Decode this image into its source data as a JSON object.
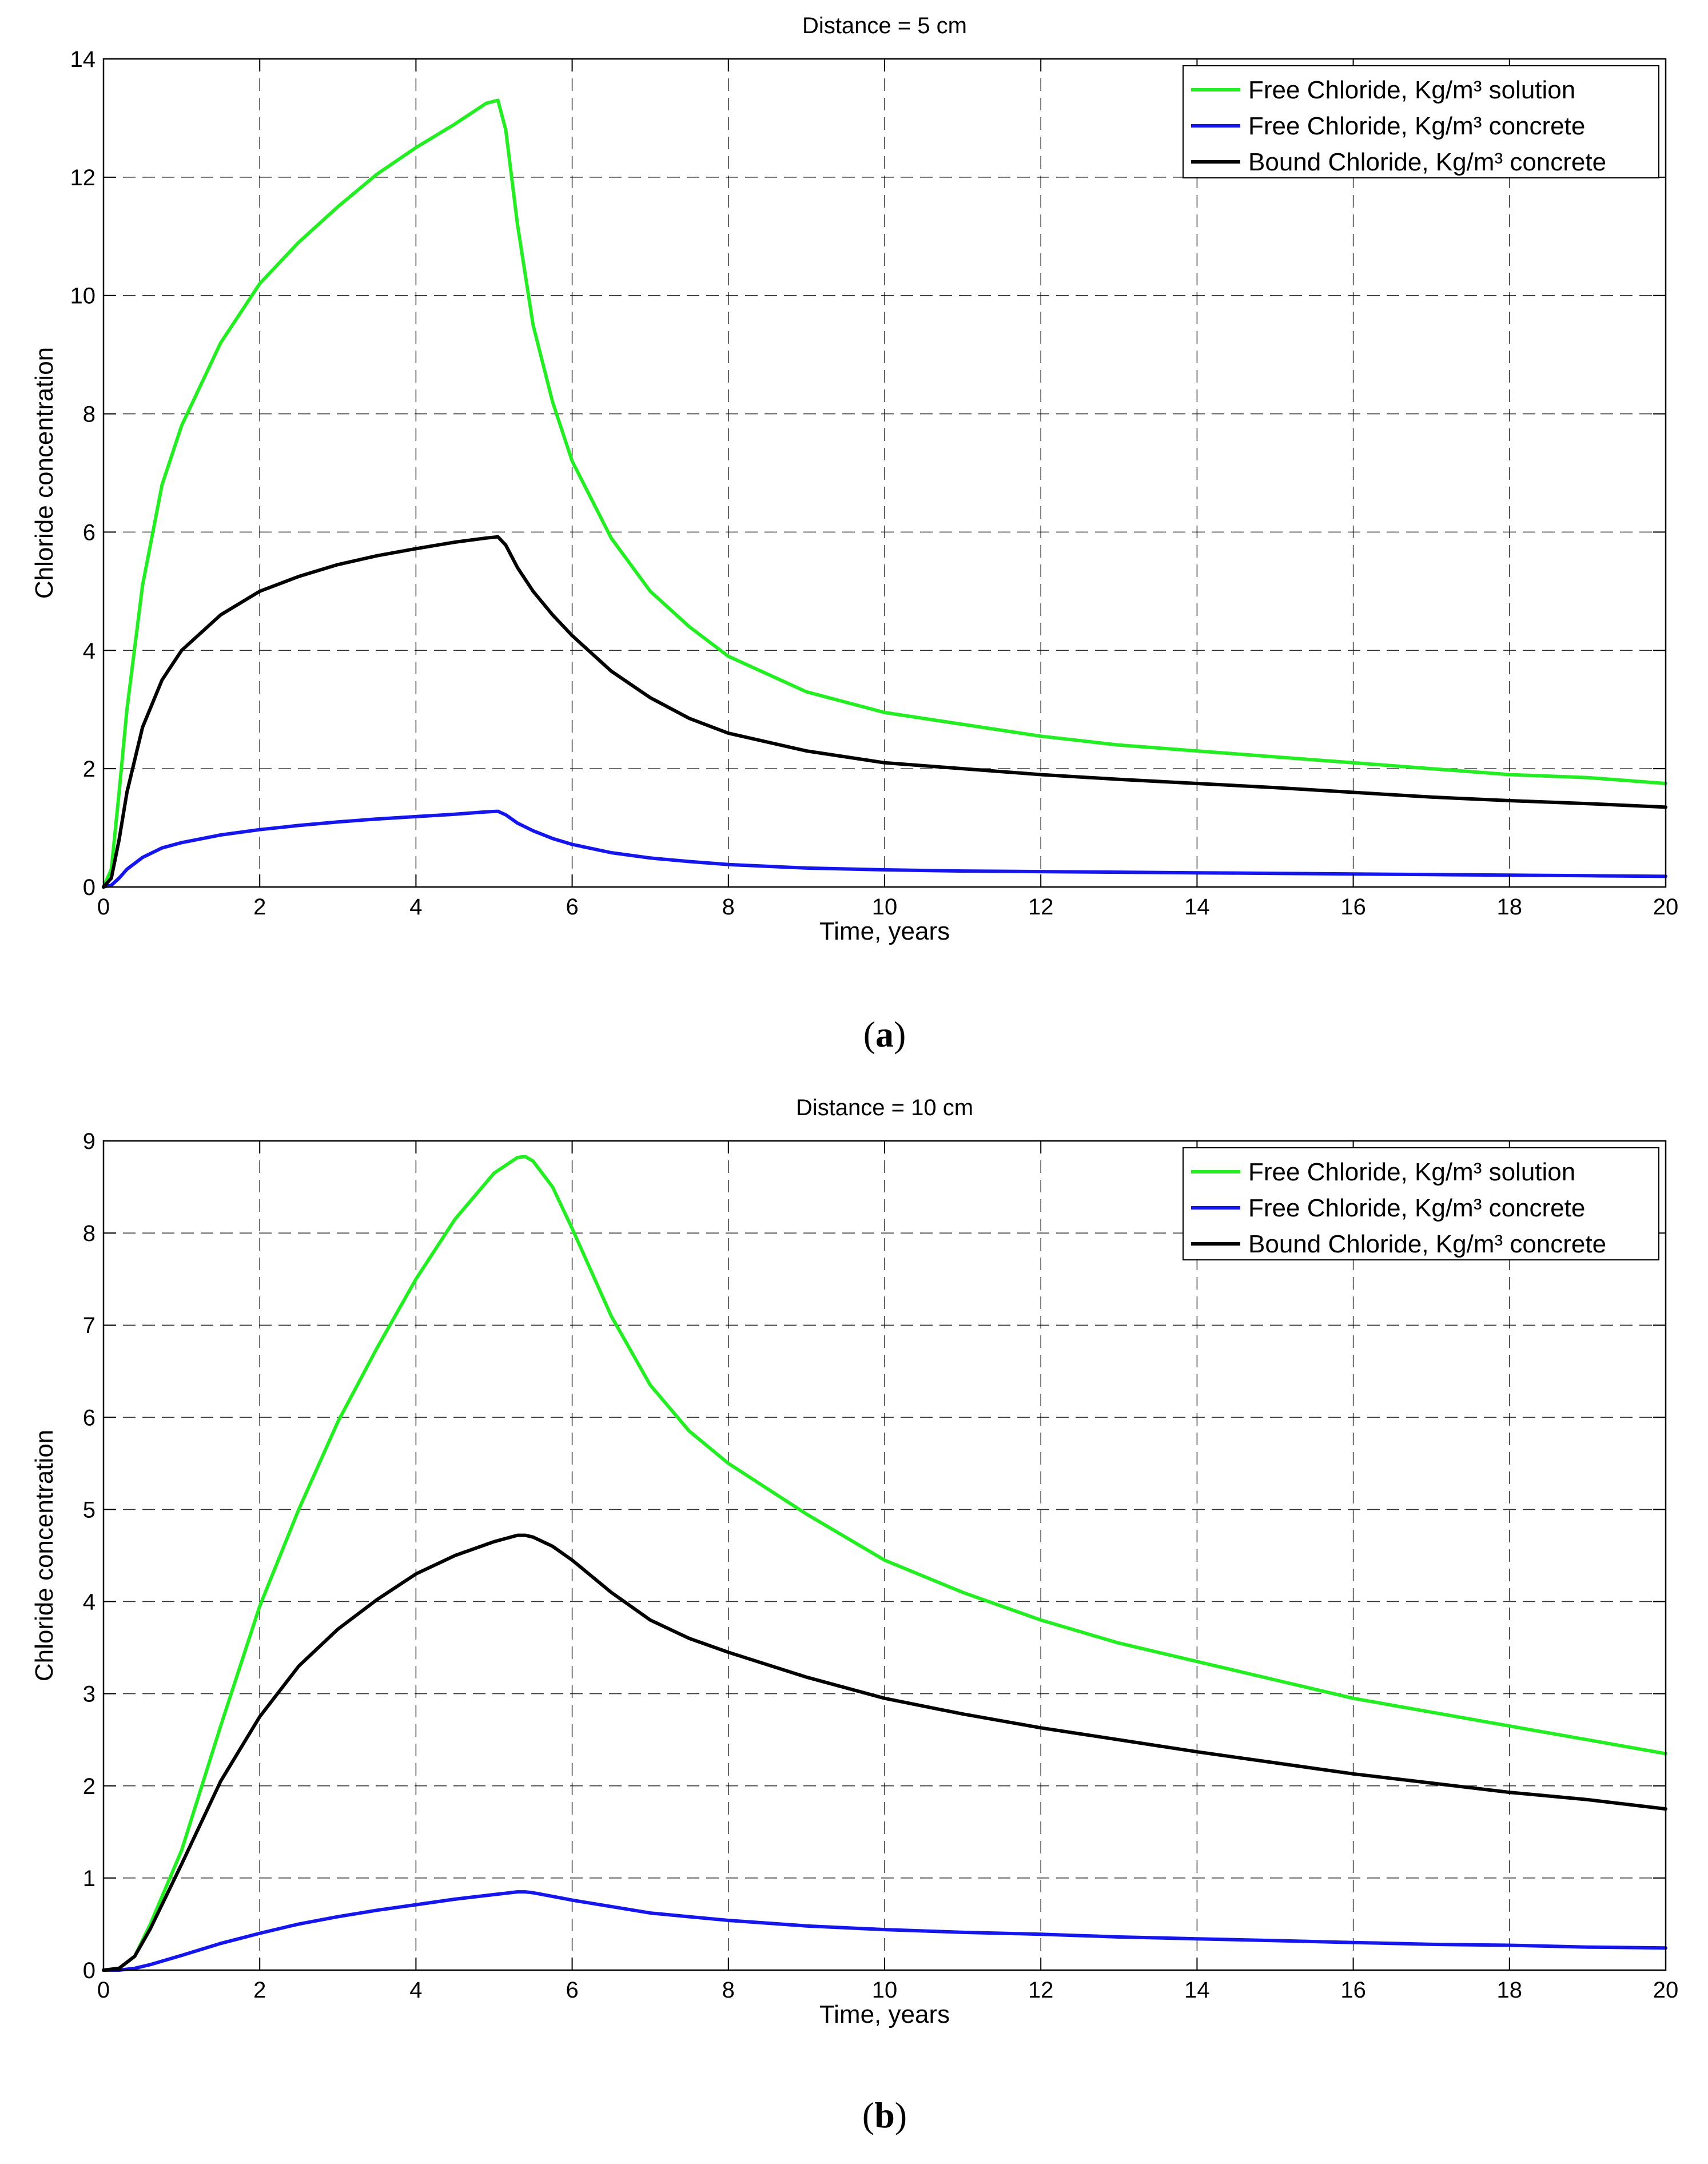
{
  "chart_data": [
    {
      "type": "line",
      "panel_label": "a",
      "title": "Distance = 5 cm",
      "xlabel": "Time, years",
      "ylabel": "Chloride concentration",
      "xlim": [
        0,
        20
      ],
      "ylim": [
        0,
        14
      ],
      "xticks": [
        0,
        2,
        4,
        6,
        8,
        10,
        12,
        14,
        16,
        18,
        20
      ],
      "yticks": [
        0,
        2,
        4,
        6,
        8,
        10,
        12,
        14
      ],
      "grid": true,
      "legend_position": "top-right",
      "series": [
        {
          "name": "Free Chloride, Kg/m³ solution",
          "color": "#22ee22",
          "x": [
            0,
            0.1,
            0.2,
            0.3,
            0.5,
            0.75,
            1,
            1.5,
            2,
            2.5,
            3,
            3.5,
            4,
            4.5,
            4.9,
            5.05,
            5.15,
            5.3,
            5.5,
            5.75,
            6,
            6.5,
            7,
            7.5,
            8,
            9,
            10,
            11,
            12,
            13,
            14,
            15,
            16,
            17,
            18,
            19,
            20
          ],
          "y": [
            0,
            0.3,
            1.6,
            3.0,
            5.1,
            6.8,
            7.8,
            9.2,
            10.2,
            10.9,
            11.5,
            12.05,
            12.5,
            12.9,
            13.25,
            13.3,
            12.8,
            11.2,
            9.5,
            8.2,
            7.2,
            5.9,
            5.0,
            4.4,
            3.9,
            3.3,
            2.95,
            2.75,
            2.55,
            2.4,
            2.3,
            2.2,
            2.1,
            2.0,
            1.9,
            1.85,
            1.75
          ]
        },
        {
          "name": "Free Chloride, Kg/m³ concrete",
          "color": "#1515ee",
          "x": [
            0,
            0.1,
            0.2,
            0.3,
            0.5,
            0.75,
            1,
            1.5,
            2,
            2.5,
            3,
            3.5,
            4,
            4.5,
            4.9,
            5.05,
            5.15,
            5.3,
            5.5,
            5.75,
            6,
            6.5,
            7,
            7.5,
            8,
            9,
            10,
            11,
            12,
            13,
            14,
            15,
            16,
            17,
            18,
            19,
            20
          ],
          "y": [
            0,
            0.03,
            0.15,
            0.3,
            0.5,
            0.66,
            0.75,
            0.88,
            0.97,
            1.04,
            1.1,
            1.15,
            1.19,
            1.23,
            1.27,
            1.28,
            1.22,
            1.08,
            0.95,
            0.82,
            0.72,
            0.58,
            0.49,
            0.43,
            0.38,
            0.32,
            0.29,
            0.27,
            0.26,
            0.25,
            0.24,
            0.23,
            0.22,
            0.21,
            0.2,
            0.19,
            0.18
          ]
        },
        {
          "name": "Bound Chloride, Kg/m³ concrete",
          "color": "#000000",
          "x": [
            0,
            0.1,
            0.2,
            0.3,
            0.5,
            0.75,
            1,
            1.5,
            2,
            2.5,
            3,
            3.5,
            4,
            4.5,
            4.9,
            5.05,
            5.15,
            5.3,
            5.5,
            5.75,
            6,
            6.5,
            7,
            7.5,
            8,
            9,
            10,
            11,
            12,
            13,
            14,
            15,
            16,
            17,
            18,
            19,
            20
          ],
          "y": [
            0,
            0.15,
            0.8,
            1.6,
            2.7,
            3.5,
            4.0,
            4.6,
            5.0,
            5.25,
            5.45,
            5.6,
            5.72,
            5.83,
            5.9,
            5.92,
            5.78,
            5.4,
            5.0,
            4.6,
            4.25,
            3.65,
            3.2,
            2.85,
            2.6,
            2.3,
            2.1,
            2.0,
            1.9,
            1.82,
            1.75,
            1.68,
            1.6,
            1.52,
            1.46,
            1.41,
            1.35
          ]
        }
      ]
    },
    {
      "type": "line",
      "panel_label": "b",
      "title": "Distance = 10 cm",
      "xlabel": "Time, years",
      "ylabel": "Chloride concentration",
      "xlim": [
        0,
        20
      ],
      "ylim": [
        0,
        9
      ],
      "xticks": [
        0,
        2,
        4,
        6,
        8,
        10,
        12,
        14,
        16,
        18,
        20
      ],
      "yticks": [
        0,
        1,
        2,
        3,
        4,
        5,
        6,
        7,
        8,
        9
      ],
      "grid": true,
      "legend_position": "top-right",
      "series": [
        {
          "name": "Free Chloride, Kg/m³ solution",
          "color": "#22ee22",
          "x": [
            0,
            0.2,
            0.4,
            0.6,
            0.8,
            1,
            1.5,
            2,
            2.5,
            3,
            3.5,
            4,
            4.5,
            5,
            5.3,
            5.4,
            5.5,
            5.75,
            6,
            6.5,
            7,
            7.5,
            8,
            9,
            10,
            11,
            12,
            13,
            14,
            15,
            16,
            17,
            18,
            19,
            20
          ],
          "y": [
            0,
            0.02,
            0.15,
            0.5,
            0.9,
            1.3,
            2.65,
            3.95,
            5.0,
            5.95,
            6.75,
            7.5,
            8.15,
            8.65,
            8.82,
            8.83,
            8.78,
            8.5,
            8.05,
            7.1,
            6.35,
            5.85,
            5.5,
            4.95,
            4.45,
            4.1,
            3.8,
            3.55,
            3.35,
            3.15,
            2.95,
            2.8,
            2.65,
            2.5,
            2.35
          ]
        },
        {
          "name": "Free Chloride, Kg/m³ concrete",
          "color": "#1515ee",
          "x": [
            0,
            0.2,
            0.4,
            0.6,
            0.8,
            1,
            1.5,
            2,
            2.5,
            3,
            3.5,
            4,
            4.5,
            5,
            5.3,
            5.4,
            5.5,
            5.75,
            6,
            6.5,
            7,
            7.5,
            8,
            9,
            10,
            11,
            12,
            13,
            14,
            15,
            16,
            17,
            18,
            19,
            20
          ],
          "y": [
            0,
            0.0,
            0.02,
            0.06,
            0.11,
            0.16,
            0.29,
            0.4,
            0.5,
            0.58,
            0.65,
            0.71,
            0.77,
            0.82,
            0.85,
            0.85,
            0.84,
            0.8,
            0.76,
            0.69,
            0.62,
            0.58,
            0.54,
            0.48,
            0.44,
            0.41,
            0.39,
            0.36,
            0.34,
            0.32,
            0.3,
            0.28,
            0.27,
            0.25,
            0.24
          ]
        },
        {
          "name": "Bound Chloride, Kg/m³ concrete",
          "color": "#000000",
          "x": [
            0,
            0.2,
            0.4,
            0.6,
            0.8,
            1,
            1.5,
            2,
            2.5,
            3,
            3.5,
            4,
            4.5,
            5,
            5.3,
            5.4,
            5.5,
            5.75,
            6,
            6.5,
            7,
            7.5,
            8,
            9,
            10,
            11,
            12,
            13,
            14,
            15,
            16,
            17,
            18,
            19,
            20
          ],
          "y": [
            0,
            0.02,
            0.15,
            0.45,
            0.8,
            1.15,
            2.05,
            2.75,
            3.3,
            3.7,
            4.02,
            4.3,
            4.5,
            4.65,
            4.72,
            4.72,
            4.7,
            4.6,
            4.45,
            4.1,
            3.8,
            3.6,
            3.45,
            3.18,
            2.95,
            2.78,
            2.63,
            2.5,
            2.37,
            2.25,
            2.13,
            2.03,
            1.93,
            1.85,
            1.75
          ]
        }
      ]
    }
  ]
}
